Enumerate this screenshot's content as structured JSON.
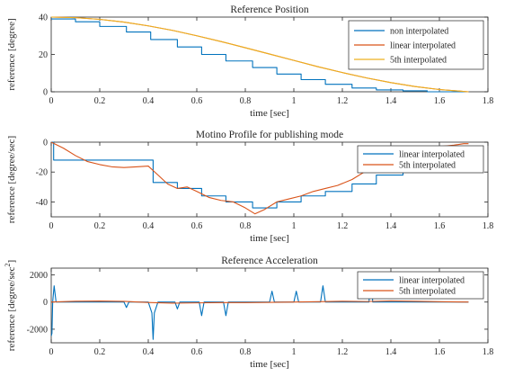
{
  "chart_data": [
    {
      "type": "line",
      "title": "Reference Position",
      "xlabel": "time [sec]",
      "ylabel": "reference [degree]",
      "xlim": [
        0,
        1.8
      ],
      "ylim": [
        0,
        40
      ],
      "xticks": [
        0,
        0.2,
        0.4,
        0.6,
        0.8,
        1,
        1.2,
        1.4,
        1.6,
        1.8
      ],
      "xtick_labels": [
        "0",
        "0.2",
        "0.4",
        "0.6",
        "0.8",
        "1",
        "1.2",
        "1.4",
        "1.6",
        "1.8"
      ],
      "yticks": [
        0,
        20,
        40
      ],
      "ytick_labels": [
        "0",
        "20",
        "40"
      ],
      "legend_position": "top-right",
      "series": [
        {
          "name": "non interpolated",
          "color": "#0072BD",
          "style": "step",
          "x": [
            0,
            0.1,
            0.1,
            0.2,
            0.2,
            0.31,
            0.31,
            0.41,
            0.41,
            0.52,
            0.52,
            0.62,
            0.62,
            0.72,
            0.72,
            0.83,
            0.83,
            0.93,
            0.93,
            1.03,
            1.03,
            1.13,
            1.13,
            1.24,
            1.24,
            1.34,
            1.34,
            1.45,
            1.45,
            1.55,
            1.55,
            1.72
          ],
          "y": [
            39,
            39,
            37.5,
            37.5,
            35,
            35,
            32,
            32,
            28,
            28,
            24,
            24,
            20,
            20,
            16.5,
            16.5,
            13,
            13,
            9.5,
            9.5,
            6.5,
            6.5,
            4,
            4,
            2,
            2,
            1,
            1,
            0.5,
            0.5,
            0,
            0
          ]
        },
        {
          "name": "linear interpolated",
          "color": "#D95319",
          "x": [
            0,
            0.1,
            0.2,
            0.3,
            0.4,
            0.5,
            0.6,
            0.7,
            0.8,
            0.9,
            1.0,
            1.1,
            1.2,
            1.3,
            1.4,
            1.5,
            1.6,
            1.72
          ],
          "y": [
            40,
            39.7,
            38.8,
            37.3,
            35.3,
            32.9,
            30.0,
            26.9,
            23.6,
            20.2,
            16.8,
            13.4,
            10.3,
            7.4,
            4.9,
            2.8,
            1.2,
            0
          ]
        },
        {
          "name": "5th interpolated",
          "color": "#EDB120",
          "x": [
            0,
            0.1,
            0.2,
            0.3,
            0.4,
            0.5,
            0.6,
            0.7,
            0.8,
            0.9,
            1.0,
            1.1,
            1.2,
            1.3,
            1.4,
            1.5,
            1.6,
            1.72
          ],
          "y": [
            40,
            39.7,
            38.8,
            37.3,
            35.3,
            32.9,
            30.0,
            26.9,
            23.6,
            20.2,
            16.8,
            13.4,
            10.3,
            7.4,
            4.9,
            2.8,
            1.2,
            0
          ]
        }
      ]
    },
    {
      "type": "line",
      "title": "Motino Profile for publishing mode",
      "xlabel": "time [sec]",
      "ylabel": "reference [degree/sec]",
      "xlim": [
        0,
        1.8
      ],
      "ylim": [
        -50,
        0
      ],
      "xticks": [
        0,
        0.2,
        0.4,
        0.6,
        0.8,
        1,
        1.2,
        1.4,
        1.6,
        1.8
      ],
      "xtick_labels": [
        "0",
        "0.2",
        "0.4",
        "0.6",
        "0.8",
        "1",
        "1.2",
        "1.4",
        "1.6",
        "1.8"
      ],
      "yticks": [
        -40,
        -20,
        0
      ],
      "ytick_labels": [
        "-40",
        "-20",
        "0"
      ],
      "legend_position": "top-right",
      "series": [
        {
          "name": "linear interpolated",
          "color": "#0072BD",
          "style": "step",
          "x": [
            0,
            0.01,
            0.01,
            0.42,
            0.42,
            0.52,
            0.52,
            0.62,
            0.62,
            0.72,
            0.72,
            0.83,
            0.83,
            0.93,
            0.93,
            1.03,
            1.03,
            1.13,
            1.13,
            1.24,
            1.24,
            1.34,
            1.34,
            1.45,
            1.45,
            1.55,
            1.55,
            1.72
          ],
          "y": [
            0,
            0,
            -12,
            -12,
            -27,
            -27,
            -31,
            -31,
            -36,
            -36,
            -40,
            -40,
            -44,
            -44,
            -40,
            -40,
            -36,
            -36,
            -33,
            -33,
            -28,
            -28,
            -22,
            -22,
            -15,
            -15,
            -7,
            -7
          ]
        },
        {
          "name": "5th interpolated",
          "color": "#D95319",
          "x": [
            0,
            0.05,
            0.1,
            0.15,
            0.2,
            0.25,
            0.3,
            0.35,
            0.4,
            0.44,
            0.48,
            0.52,
            0.56,
            0.6,
            0.65,
            0.7,
            0.75,
            0.8,
            0.84,
            0.88,
            0.93,
            0.98,
            1.03,
            1.08,
            1.13,
            1.18,
            1.24,
            1.3,
            1.36,
            1.42,
            1.48,
            1.54,
            1.6,
            1.66,
            1.7,
            1.72
          ],
          "y": [
            0,
            -4,
            -9,
            -13,
            -15,
            -16.5,
            -17,
            -16.5,
            -16,
            -22,
            -28,
            -31,
            -30,
            -33,
            -37,
            -39,
            -40,
            -44,
            -48,
            -45,
            -40,
            -38,
            -36,
            -33,
            -31,
            -29,
            -25,
            -19,
            -16,
            -15,
            -12,
            -6,
            -3,
            -2,
            -1,
            -1
          ]
        }
      ]
    },
    {
      "type": "line",
      "title": "Reference Acceleration",
      "xlabel": "time [sec]",
      "ylabel": "reference [degree/sec",
      "ylabel_superscript": "2",
      "ylabel_suffix": "]",
      "xlim": [
        0,
        1.8
      ],
      "ylim": [
        -3000,
        2500
      ],
      "xticks": [
        0,
        0.2,
        0.4,
        0.6,
        0.8,
        1,
        1.2,
        1.4,
        1.6,
        1.8
      ],
      "xtick_labels": [
        "0",
        "0.2",
        "0.4",
        "0.6",
        "0.8",
        "1",
        "1.2",
        "1.4",
        "1.6",
        "1.8"
      ],
      "yticks": [
        -2000,
        0,
        2000
      ],
      "ytick_labels": [
        "-2000",
        "0",
        "2000"
      ],
      "legend_position": "top-right",
      "series": [
        {
          "name": "linear interpolated",
          "color": "#0072BD",
          "x": [
            0,
            0.003,
            0.006,
            0.012,
            0.02,
            0.3,
            0.31,
            0.32,
            0.4,
            0.415,
            0.42,
            0.425,
            0.44,
            0.51,
            0.52,
            0.53,
            0.61,
            0.62,
            0.63,
            0.71,
            0.72,
            0.73,
            0.9,
            0.91,
            0.92,
            1.0,
            1.01,
            1.02,
            1.11,
            1.12,
            1.13,
            1.31,
            1.315,
            1.32,
            1.325,
            1.33,
            1.34,
            1.72
          ],
          "y": [
            -2500,
            -2300,
            0,
            1200,
            0,
            0,
            -400,
            0,
            0,
            -800,
            -2750,
            -800,
            0,
            0,
            -500,
            0,
            0,
            -1000,
            0,
            0,
            -1000,
            0,
            0,
            800,
            0,
            0,
            800,
            0,
            0,
            1200,
            0,
            0,
            2200,
            2200,
            0,
            0,
            0,
            0
          ]
        },
        {
          "name": "5th interpolated",
          "color": "#D95319",
          "x": [
            0,
            0.1,
            0.2,
            0.3,
            0.4,
            0.5,
            0.6,
            0.7,
            0.8,
            0.9,
            1.0,
            1.1,
            1.2,
            1.3,
            1.4,
            1.5,
            1.6,
            1.72
          ],
          "y": [
            0,
            60,
            80,
            50,
            -30,
            -80,
            -60,
            -40,
            -40,
            -20,
            0,
            30,
            60,
            40,
            90,
            60,
            30,
            0
          ]
        }
      ]
    }
  ]
}
